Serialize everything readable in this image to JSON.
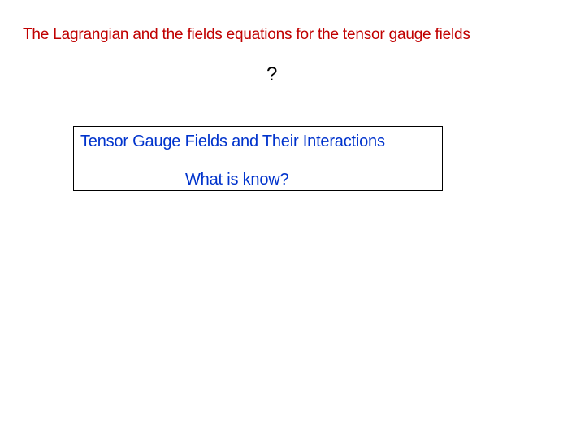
{
  "title": {
    "text": "The Lagrangian and the fields equations for the tensor gauge fields",
    "color": "#c00000",
    "fontsize": 19
  },
  "question_mark": {
    "text": "?",
    "color": "#000000",
    "fontsize": 24
  },
  "box": {
    "border_color": "#000000",
    "line1": {
      "text": "Tensor Gauge Fields and Their Interactions",
      "color": "#0033cc",
      "fontsize": 20
    },
    "line2": {
      "text": "What is know?",
      "color": "#0033cc",
      "fontsize": 20
    }
  },
  "background_color": "#ffffff"
}
